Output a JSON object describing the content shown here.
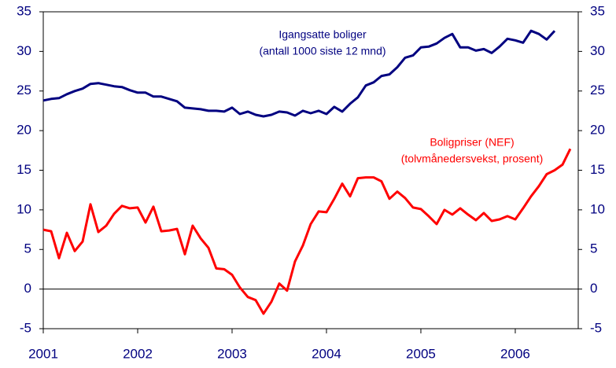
{
  "chart_data": {
    "type": "line",
    "annotations": [
      {
        "lines": [
          "Igangsatte boliger",
          "(antall 1000 siste 12 mnd)"
        ],
        "color": "#000080"
      },
      {
        "lines": [
          "Boligpriser (NEF)",
          "(tolvmånedersvekst, prosent)"
        ],
        "color": "#ff0000"
      }
    ],
    "x": [
      2001,
      2001.083,
      2001.167,
      2001.25,
      2001.333,
      2001.417,
      2001.5,
      2001.583,
      2001.667,
      2001.75,
      2001.833,
      2001.917,
      2002,
      2002.083,
      2002.167,
      2002.25,
      2002.333,
      2002.417,
      2002.5,
      2002.583,
      2002.667,
      2002.75,
      2002.833,
      2002.917,
      2003,
      2003.083,
      2003.167,
      2003.25,
      2003.333,
      2003.417,
      2003.5,
      2003.583,
      2003.667,
      2003.75,
      2003.833,
      2003.917,
      2004,
      2004.083,
      2004.167,
      2004.25,
      2004.333,
      2004.417,
      2004.5,
      2004.583,
      2004.667,
      2004.75,
      2004.833,
      2004.917,
      2005,
      2005.083,
      2005.167,
      2005.25,
      2005.333,
      2005.417,
      2005.5,
      2005.583,
      2005.667,
      2005.75,
      2005.833,
      2005.917,
      2006,
      2006.083,
      2006.167,
      2006.25,
      2006.333,
      2006.417,
      2006.5,
      2006.583
    ],
    "series": [
      {
        "color": "#000080",
        "values": [
          23.8,
          24.0,
          24.1,
          24.6,
          25.0,
          25.3,
          25.9,
          26.0,
          25.8,
          25.6,
          25.5,
          25.1,
          24.8,
          24.8,
          24.3,
          24.3,
          24.0,
          23.7,
          22.9,
          22.8,
          22.7,
          22.5,
          22.5,
          22.4,
          22.9,
          22.1,
          22.4,
          22.0,
          21.8,
          22.0,
          22.4,
          22.3,
          21.9,
          22.5,
          22.2,
          22.5,
          22.1,
          23.0,
          22.4,
          23.4,
          24.2,
          25.7,
          26.1,
          26.9,
          27.1,
          28.0,
          29.2,
          29.5,
          30.5,
          30.6,
          31.0,
          31.7,
          32.2,
          30.5,
          30.5,
          30.1,
          30.3,
          29.8,
          30.6,
          31.6,
          31.4,
          31.1,
          32.6,
          32.2,
          31.5,
          32.6,
          null,
          null
        ]
      },
      {
        "color": "#ff0000",
        "values": [
          7.5,
          7.3,
          3.9,
          7.1,
          4.8,
          6.0,
          10.7,
          7.2,
          8.0,
          9.5,
          10.5,
          10.2,
          10.3,
          8.4,
          10.4,
          7.3,
          7.4,
          7.6,
          4.4,
          8.0,
          6.4,
          5.2,
          2.6,
          2.5,
          1.8,
          0.2,
          -1.0,
          -1.4,
          -3.1,
          -1.6,
          0.7,
          -0.2,
          3.5,
          5.5,
          8.2,
          9.8,
          9.7,
          11.4,
          13.3,
          11.7,
          14.0,
          14.1,
          14.1,
          13.6,
          11.4,
          12.3,
          11.5,
          10.3,
          10.1,
          9.2,
          8.2,
          10.0,
          9.4,
          10.2,
          9.4,
          8.7,
          9.6,
          8.6,
          8.8,
          9.2,
          8.8,
          10.2,
          11.7,
          13.0,
          14.5,
          15.0,
          15.7,
          17.7
        ]
      }
    ],
    "xlim": [
      2001,
      2006.667
    ],
    "xticks": [
      2001,
      2002,
      2003,
      2004,
      2005,
      2006
    ],
    "ylim": [
      -5,
      35
    ],
    "yticks": [
      -5,
      0,
      5,
      10,
      15,
      20,
      25,
      30,
      35
    ],
    "y2lim": [
      -5,
      35
    ],
    "y2ticks": [
      -5,
      0,
      5,
      10,
      15,
      20,
      25,
      30,
      35
    ]
  }
}
